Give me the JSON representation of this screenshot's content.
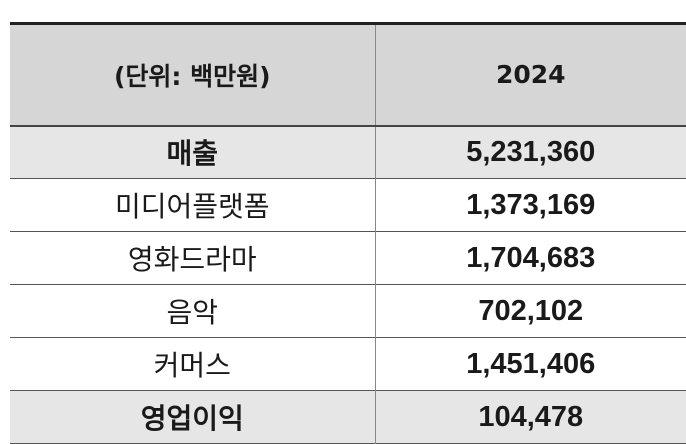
{
  "table": {
    "header": {
      "unit_label": "(단위: 백만원)",
      "year": "2024"
    },
    "rows": [
      {
        "label": "매출",
        "value": "5,231,360",
        "highlight": true
      },
      {
        "label": "미디어플랫폼",
        "value": "1,373,169",
        "highlight": false
      },
      {
        "label": "영화드라마",
        "value": "1,704,683",
        "highlight": false
      },
      {
        "label": "음악",
        "value": "702,102",
        "highlight": false
      },
      {
        "label": "커머스",
        "value": "1,451,406",
        "highlight": false
      },
      {
        "label": "영업이익",
        "value": "104,478",
        "highlight": true
      }
    ]
  }
}
